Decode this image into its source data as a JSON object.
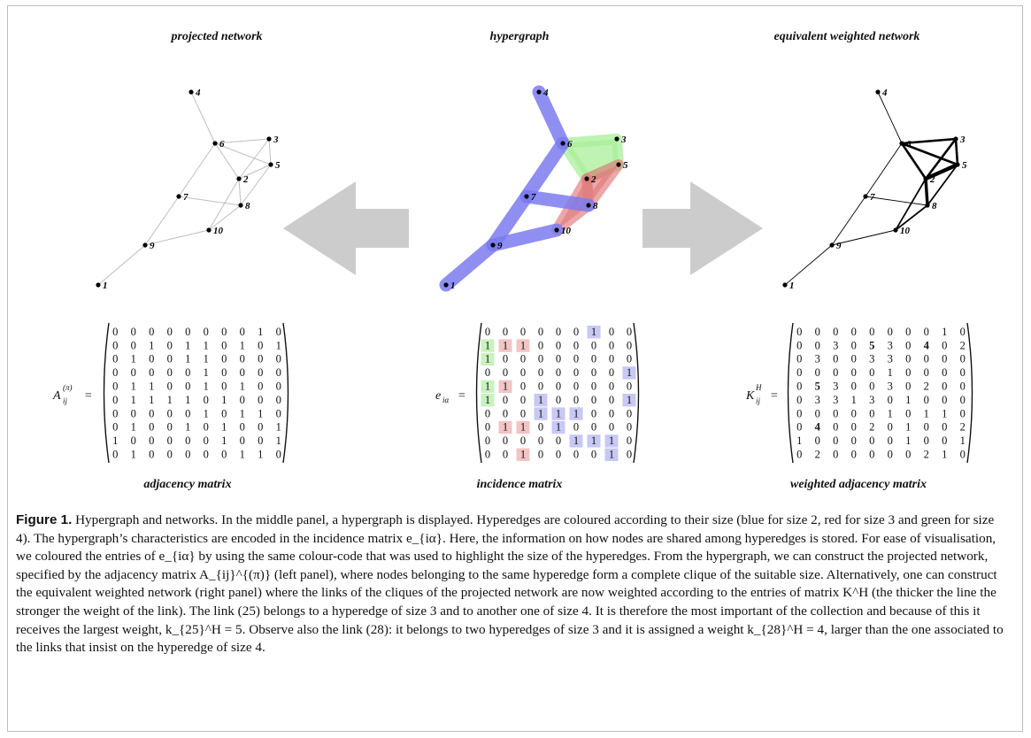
{
  "panels": {
    "left_title": "projected network",
    "middle_title": "hypergraph",
    "right_title": "equivalent weighted network",
    "left_matrix_label": "adjacency matrix",
    "middle_matrix_label": "incidence matrix",
    "right_matrix_label": "weighted adjacency matrix"
  },
  "nodes": [
    "1",
    "2",
    "3",
    "4",
    "5",
    "6",
    "7",
    "8",
    "9",
    "10"
  ],
  "matrices": {
    "adjacency_name": "A",
    "adjacency_sub": "ij",
    "adjacency_sup": "(π)",
    "adjacency": [
      [
        0,
        0,
        0,
        0,
        0,
        0,
        0,
        0,
        1,
        0
      ],
      [
        0,
        0,
        1,
        0,
        1,
        1,
        0,
        1,
        0,
        1
      ],
      [
        0,
        1,
        0,
        0,
        1,
        1,
        0,
        0,
        0,
        0
      ],
      [
        0,
        0,
        0,
        0,
        0,
        1,
        0,
        0,
        0,
        0
      ],
      [
        0,
        1,
        1,
        0,
        0,
        1,
        0,
        1,
        0,
        0
      ],
      [
        0,
        1,
        1,
        1,
        1,
        0,
        1,
        0,
        0,
        0
      ],
      [
        0,
        0,
        0,
        0,
        0,
        1,
        0,
        1,
        1,
        0
      ],
      [
        0,
        1,
        0,
        0,
        1,
        0,
        1,
        0,
        0,
        1
      ],
      [
        1,
        0,
        0,
        0,
        0,
        0,
        1,
        0,
        0,
        1
      ],
      [
        0,
        1,
        0,
        0,
        0,
        0,
        0,
        1,
        1,
        0
      ]
    ],
    "incidence_name": "e",
    "incidence_sub": "iα",
    "incidence": [
      [
        0,
        0,
        0,
        0,
        0,
        0,
        1,
        0,
        0
      ],
      [
        1,
        1,
        1,
        0,
        0,
        0,
        0,
        0,
        0
      ],
      [
        1,
        0,
        0,
        0,
        0,
        0,
        0,
        0,
        0
      ],
      [
        0,
        0,
        0,
        0,
        0,
        0,
        0,
        0,
        1
      ],
      [
        1,
        1,
        0,
        0,
        0,
        0,
        0,
        0,
        0
      ],
      [
        1,
        0,
        0,
        1,
        0,
        0,
        0,
        0,
        1
      ],
      [
        0,
        0,
        0,
        1,
        1,
        1,
        0,
        0,
        0
      ],
      [
        0,
        1,
        1,
        0,
        1,
        0,
        0,
        0,
        0
      ],
      [
        0,
        0,
        0,
        0,
        0,
        1,
        1,
        1,
        0
      ],
      [
        0,
        0,
        1,
        0,
        0,
        0,
        0,
        1,
        0
      ]
    ],
    "incidence_colors": [
      [
        "",
        "",
        "",
        "",
        "",
        "",
        "b",
        "",
        ""
      ],
      [
        "g",
        "r",
        "r",
        "",
        "",
        "",
        "",
        "",
        ""
      ],
      [
        "g",
        "",
        "",
        "",
        "",
        "",
        "",
        "",
        ""
      ],
      [
        "",
        "",
        "",
        "",
        "",
        "",
        "",
        "",
        "b"
      ],
      [
        "g",
        "r",
        "",
        "",
        "",
        "",
        "",
        "",
        ""
      ],
      [
        "g",
        "",
        "",
        "b",
        "",
        "",
        "",
        "",
        "b"
      ],
      [
        "",
        "",
        "",
        "b",
        "b",
        "b",
        "",
        "",
        ""
      ],
      [
        "",
        "r",
        "r",
        "",
        "b",
        "",
        "",
        "",
        ""
      ],
      [
        "",
        "",
        "",
        "",
        "",
        "b",
        "b",
        "b",
        ""
      ],
      [
        "",
        "",
        "r",
        "",
        "",
        "",
        "",
        "b",
        ""
      ]
    ],
    "weighted_name": "K",
    "weighted_sub": "ij",
    "weighted_sup": "H",
    "weighted": [
      [
        0,
        0,
        0,
        0,
        0,
        0,
        0,
        0,
        1,
        0
      ],
      [
        0,
        0,
        3,
        0,
        5,
        3,
        0,
        4,
        0,
        2
      ],
      [
        0,
        3,
        0,
        0,
        3,
        3,
        0,
        0,
        0,
        0
      ],
      [
        0,
        0,
        0,
        0,
        0,
        1,
        0,
        0,
        0,
        0
      ],
      [
        0,
        5,
        3,
        0,
        0,
        3,
        0,
        2,
        0,
        0
      ],
      [
        0,
        3,
        3,
        1,
        3,
        0,
        1,
        0,
        0,
        0
      ],
      [
        0,
        0,
        0,
        0,
        0,
        1,
        0,
        1,
        1,
        0
      ],
      [
        0,
        4,
        0,
        0,
        2,
        0,
        1,
        0,
        0,
        2
      ],
      [
        1,
        0,
        0,
        0,
        0,
        0,
        1,
        0,
        0,
        1
      ],
      [
        0,
        2,
        0,
        0,
        0,
        0,
        0,
        2,
        1,
        0
      ]
    ]
  },
  "colors": {
    "size2": "#7b7bf0",
    "size3": "#e07a7a",
    "size4": "#a8ef9a",
    "arrow": "#cccccc",
    "cell_blue": "#c8c8f5",
    "cell_red": "#f2c4c4",
    "cell_green": "#c9f2bf"
  },
  "caption": {
    "label": "Figure 1.",
    "text": "Hypergraph and networks. In the middle panel, a hypergraph is displayed. Hyperedges are coloured according to their size (blue for size 2, red for size 3 and green for size 4). The hypergraph’s characteristics are encoded in the incidence matrix e_{iα}. Here, the information on how nodes are shared among hyperedges is stored. For ease of visualisation, we coloured the entries of e_{iα} by using the same colour-code that was used to highlight the size of the hyperedges. From the hypergraph, we can construct the projected network, specified by the adjacency matrix A_{ij}^{(π)} (left panel), where nodes belonging to the same hyperedge form a complete clique of the suitable size. Alternatively, one can construct the equivalent weighted network (right panel) where the links of the cliques of the projected network are now weighted according to the entries of matrix K^H (the thicker the line the stronger the weight of the link). The link (25) belongs to a hyperedge of size 3 and to another one of size 4. It is therefore the most important of the collection and because of this it receives the largest weight, k_{25}^H = 5. Observe also the link (28): it belongs to two hyperedges of size 3 and it is assigned a weight k_{28}^H = 4, larger than the one associated to the links that insist on the hyperedge of size 4."
  }
}
